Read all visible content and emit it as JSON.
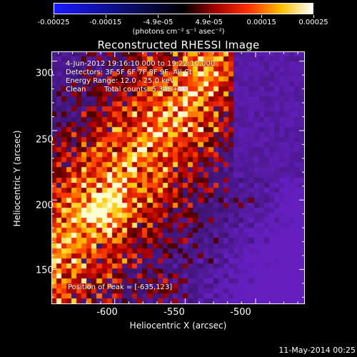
{
  "colorbar": {
    "ticks": [
      "-0.00025",
      "-0.00015",
      "-4.9e-05",
      "4.9e-05",
      "0.00015",
      "0.00025"
    ],
    "tick_values": [
      -0.00025,
      -0.00015,
      -4.9e-05,
      4.9e-05,
      0.00015,
      0.00025
    ],
    "range": [
      -0.00025,
      0.00025
    ],
    "units": "(photons cm⁻² s⁻¹ asec⁻²)",
    "colors": [
      "#0000ff",
      "#000000",
      "#ff0000",
      "#ffff00",
      "#ffffff"
    ]
  },
  "chart_data": {
    "type": "heatmap",
    "title": "Reconstructed RHESSI Image",
    "xlabel": "Heliocentric X (arcsec)",
    "ylabel": "Heliocentric Y (arcsec)",
    "xlim": [
      -645,
      -465
    ],
    "ylim": [
      125,
      307
    ],
    "x_ticks": [
      "-600",
      "-550",
      "-500"
    ],
    "x_tick_values": [
      -600,
      -550,
      -500
    ],
    "y_ticks": [
      "150",
      "200",
      "250",
      "300"
    ],
    "y_tick_values": [
      150,
      200,
      250,
      300
    ],
    "annotations": [
      "4-Jun-2012 19:16:10.000 to 19:22:10.000",
      "Detectors: 3F 5F 6F 7F 8F 9F, All Ct",
      "Energy Range: 12.0 - 25.0 keV",
      "Clean",
      "Total counts: 5.34E+03",
      "Position of Peak = [-635,123]"
    ],
    "peak": [
      -635,
      123
    ],
    "grid": false
  },
  "footer": {
    "date": "11-May-2014 00:25"
  }
}
